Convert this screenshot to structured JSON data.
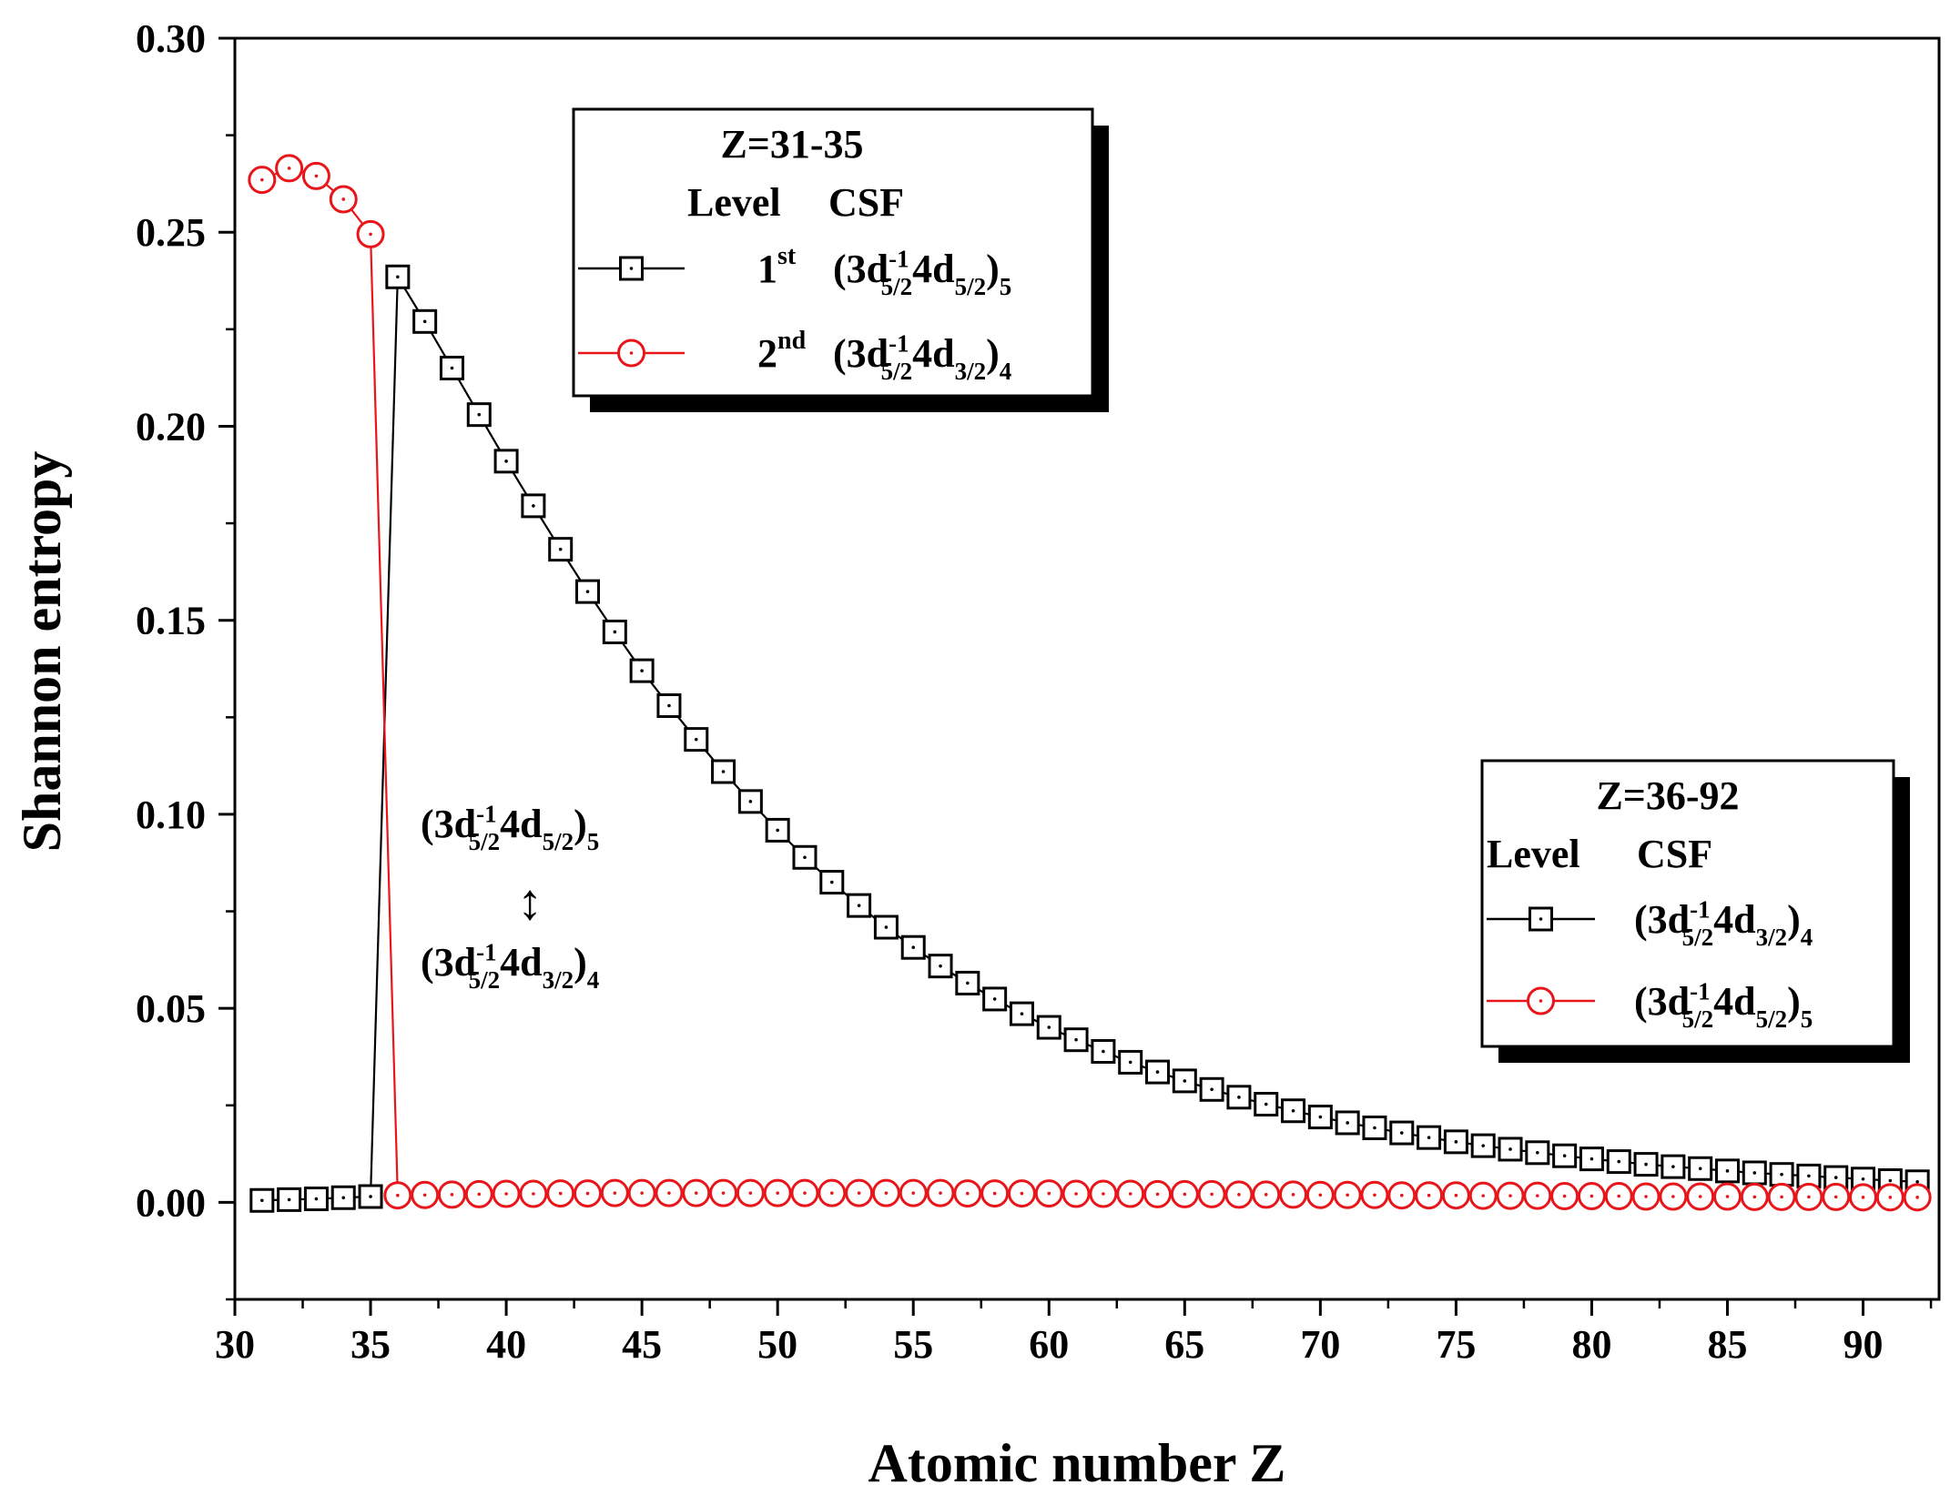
{
  "chart_data": {
    "type": "line",
    "xlabel": "Atomic number Z",
    "ylabel": "Shannon entropy",
    "xlim": [
      30,
      92.8
    ],
    "ylim": [
      -0.025,
      0.3
    ],
    "x_ticks": [
      "30",
      "35",
      "40",
      "45",
      "50",
      "55",
      "60",
      "65",
      "70",
      "75",
      "80",
      "85",
      "90"
    ],
    "y_ticks": [
      "0.00",
      "0.05",
      "0.10",
      "0.15",
      "0.20",
      "0.25",
      "0.30"
    ],
    "series": [
      {
        "name": "black-square",
        "color": "#000000",
        "marker": "square",
        "x": [
          31,
          32,
          33,
          34,
          35,
          36,
          37,
          38,
          39,
          40,
          41,
          42,
          43,
          44,
          45,
          46,
          47,
          48,
          49,
          50,
          51,
          52,
          53,
          54,
          55,
          56,
          57,
          58,
          59,
          60,
          61,
          62,
          63,
          64,
          65,
          66,
          67,
          68,
          69,
          70,
          71,
          72,
          73,
          74,
          75,
          76,
          77,
          78,
          79,
          80,
          81,
          82,
          83,
          84,
          85,
          86,
          87,
          88,
          89,
          90,
          91,
          92
        ],
        "y": [
          0.0005,
          0.0007,
          0.0009,
          0.0012,
          0.0015,
          0.2385,
          0.227,
          0.215,
          0.203,
          0.191,
          0.1795,
          0.1683,
          0.1574,
          0.147,
          0.137,
          0.128,
          0.1193,
          0.111,
          0.1033,
          0.0959,
          0.0889,
          0.0825,
          0.0765,
          0.0709,
          0.0657,
          0.0609,
          0.0565,
          0.0524,
          0.0486,
          0.0451,
          0.0419,
          0.0389,
          0.0361,
          0.0336,
          0.0313,
          0.0291,
          0.0271,
          0.0253,
          0.0236,
          0.022,
          0.0205,
          0.0192,
          0.0179,
          0.0167,
          0.0156,
          0.0146,
          0.0137,
          0.0128,
          0.012,
          0.0112,
          0.0105,
          0.0098,
          0.0092,
          0.0087,
          0.0081,
          0.0076,
          0.0072,
          0.0068,
          0.0064,
          0.006,
          0.0056,
          0.0053
        ]
      },
      {
        "name": "red-circle",
        "color": "#e8161b",
        "marker": "circle",
        "x": [
          31,
          32,
          33,
          34,
          35,
          36,
          37,
          38,
          39,
          40,
          41,
          42,
          43,
          44,
          45,
          46,
          47,
          48,
          49,
          50,
          51,
          52,
          53,
          54,
          55,
          56,
          57,
          58,
          59,
          60,
          61,
          62,
          63,
          64,
          65,
          66,
          67,
          68,
          69,
          70,
          71,
          72,
          73,
          74,
          75,
          76,
          77,
          78,
          79,
          80,
          81,
          82,
          83,
          84,
          85,
          86,
          87,
          88,
          89,
          90,
          91,
          92
        ],
        "y": [
          0.2635,
          0.2665,
          0.2645,
          0.2585,
          0.2495,
          0.0018,
          0.0019,
          0.002,
          0.0021,
          0.0022,
          0.0022,
          0.0023,
          0.0023,
          0.0024,
          0.0024,
          0.0024,
          0.0024,
          0.0024,
          0.0024,
          0.0024,
          0.0024,
          0.0024,
          0.0024,
          0.0024,
          0.0024,
          0.0024,
          0.0023,
          0.0023,
          0.0023,
          0.0023,
          0.0022,
          0.0022,
          0.0022,
          0.0021,
          0.0021,
          0.0021,
          0.002,
          0.002,
          0.002,
          0.0019,
          0.0019,
          0.0019,
          0.0018,
          0.0018,
          0.0018,
          0.0017,
          0.0017,
          0.0017,
          0.0016,
          0.0016,
          0.0016,
          0.0015,
          0.0015,
          0.0015,
          0.0015,
          0.0014,
          0.0014,
          0.0014,
          0.0014,
          0.0013,
          0.0013,
          0.0013
        ]
      }
    ],
    "legends": [
      {
        "title": "Z=31-35",
        "header_level": "Level",
        "header_csf": "CSF",
        "entries": [
          {
            "series": "black-square",
            "level": "1",
            "level_sup": "st",
            "csf": {
              "sup": "-1",
              "sub1": "5/2",
              "sub2": "5/2",
              "j": "5"
            }
          },
          {
            "series": "red-circle",
            "level": "2",
            "level_sup": "nd",
            "csf": {
              "sup": "-1",
              "sub1": "5/2",
              "sub2": "3/2",
              "j": "4"
            }
          }
        ]
      },
      {
        "title": "Z=36-92",
        "header_level": "Level",
        "header_csf": "CSF",
        "entries": [
          {
            "series": "black-square",
            "level": "",
            "level_sup": "",
            "csf": {
              "sup": "-1",
              "sub1": "5/2",
              "sub2": "3/2",
              "j": "4"
            }
          },
          {
            "series": "red-circle",
            "level": "",
            "level_sup": "",
            "csf": {
              "sup": "-1",
              "sub1": "5/2",
              "sub2": "5/2",
              "j": "5"
            }
          }
        ]
      }
    ],
    "annotation": {
      "top": {
        "sup": "-1",
        "sub1": "5/2",
        "sub2": "5/2",
        "j": "5"
      },
      "bottom": {
        "sup": "-1",
        "sub1": "5/2",
        "sub2": "3/2",
        "j": "4"
      },
      "arrow": "↕"
    },
    "csf_parts": {
      "open": "(3d",
      "mid": "4d",
      "close": ")"
    }
  }
}
